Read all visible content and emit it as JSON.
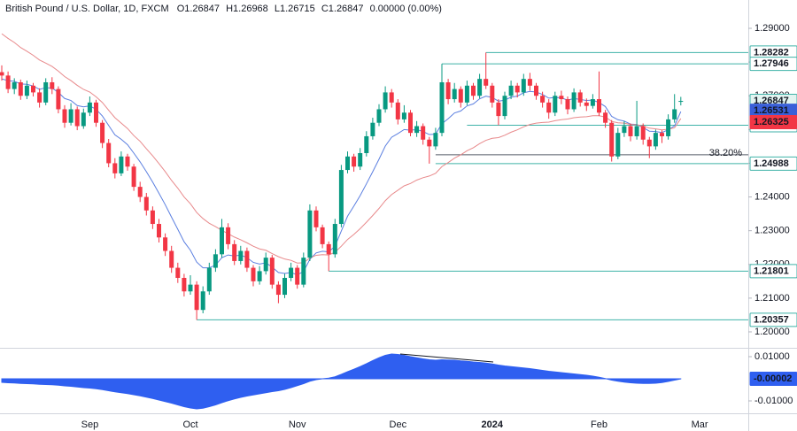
{
  "chart_data": {
    "type": "candlestick",
    "title": "British Pound / U.S. Dollar, 1D, FXCM",
    "header_keys": [
      "O",
      "H",
      "L",
      "C"
    ],
    "change": "0.00000 (0.00%)",
    "up_color": "#089981",
    "down_color": "#f23645",
    "categories": [
      null,
      null,
      null,
      null,
      null,
      null,
      null,
      null,
      null,
      null,
      null,
      null,
      null,
      null,
      "Sep",
      null,
      null,
      null,
      null,
      null,
      null,
      null,
      null,
      null,
      null,
      null,
      null,
      null,
      null,
      null,
      "Oct",
      null,
      null,
      null,
      null,
      null,
      null,
      null,
      null,
      null,
      null,
      null,
      null,
      null,
      null,
      null,
      null,
      "Nov",
      null,
      null,
      null,
      null,
      null,
      null,
      null,
      null,
      null,
      null,
      null,
      null,
      null,
      null,
      null,
      "Dec",
      null,
      null,
      null,
      null,
      null,
      null,
      null,
      null,
      null,
      null,
      null,
      null,
      null,
      null,
      "2024",
      null,
      null,
      null,
      null,
      null,
      null,
      null,
      null,
      null,
      null,
      null,
      null,
      null,
      null,
      null,
      null,
      "Feb",
      null,
      null,
      null,
      null,
      null,
      null,
      null,
      null,
      null,
      null,
      null,
      null,
      null,
      null,
      null,
      "Mar"
    ],
    "candles": [
      [
        1.277,
        1.279,
        1.2745,
        1.276
      ],
      [
        1.276,
        1.2772,
        1.2708,
        1.272
      ],
      [
        1.272,
        1.2752,
        1.2705,
        1.274
      ],
      [
        1.274,
        1.2748,
        1.2688,
        1.27
      ],
      [
        1.27,
        1.2745,
        1.269,
        1.273
      ],
      [
        1.273,
        1.2738,
        1.2698,
        1.271
      ],
      [
        1.271,
        1.2722,
        1.2665,
        1.268
      ],
      [
        1.268,
        1.2752,
        1.2672,
        1.274
      ],
      [
        1.274,
        1.2755,
        1.2705,
        1.272
      ],
      [
        1.272,
        1.2728,
        1.2648,
        1.266
      ],
      [
        1.266,
        1.2672,
        1.2605,
        1.262
      ],
      [
        1.262,
        1.2678,
        1.2612,
        1.266
      ],
      [
        1.266,
        1.2668,
        1.2598,
        1.261
      ],
      [
        1.261,
        1.2662,
        1.2602,
        1.265
      ],
      [
        1.265,
        1.2698,
        1.264,
        1.268
      ],
      [
        1.268,
        1.2688,
        1.2608,
        1.262
      ],
      [
        1.262,
        1.2628,
        1.2545,
        1.256
      ],
      [
        1.256,
        1.2572,
        1.2488,
        1.25
      ],
      [
        1.25,
        1.2515,
        1.2455,
        1.247
      ],
      [
        1.247,
        1.2535,
        1.2462,
        1.252
      ],
      [
        1.252,
        1.2528,
        1.2478,
        1.249
      ],
      [
        1.249,
        1.2498,
        1.2418,
        1.243
      ],
      [
        1.243,
        1.2445,
        1.2385,
        1.24
      ],
      [
        1.24,
        1.2412,
        1.2345,
        1.236
      ],
      [
        1.236,
        1.2372,
        1.2305,
        1.232
      ],
      [
        1.232,
        1.2335,
        1.2265,
        1.228
      ],
      [
        1.228,
        1.2292,
        1.2225,
        1.224
      ],
      [
        1.224,
        1.2255,
        1.2175,
        1.219
      ],
      [
        1.219,
        1.2205,
        1.2145,
        1.216
      ],
      [
        1.216,
        1.2172,
        1.2105,
        1.212
      ],
      [
        1.212,
        1.2168,
        1.211,
        1.214
      ],
      [
        1.214,
        1.215,
        1.20357,
        1.2065
      ],
      [
        1.2065,
        1.2135,
        1.2055,
        1.212
      ],
      [
        1.212,
        1.2205,
        1.211,
        1.219
      ],
      [
        1.219,
        1.2245,
        1.2178,
        1.223
      ],
      [
        1.223,
        1.2335,
        1.222,
        1.231
      ],
      [
        1.231,
        1.2322,
        1.2245,
        1.226
      ],
      [
        1.226,
        1.2272,
        1.2198,
        1.221
      ],
      [
        1.221,
        1.2255,
        1.22,
        1.224
      ],
      [
        1.224,
        1.225,
        1.2178,
        1.219
      ],
      [
        1.219,
        1.2198,
        1.2135,
        1.215
      ],
      [
        1.215,
        1.2195,
        1.214,
        1.218
      ],
      [
        1.218,
        1.2235,
        1.217,
        1.222
      ],
      [
        1.222,
        1.2228,
        1.2128,
        1.214
      ],
      [
        1.214,
        1.215,
        1.2085,
        1.211
      ],
      [
        1.211,
        1.2172,
        1.21,
        1.216
      ],
      [
        1.216,
        1.2205,
        1.215,
        1.219
      ],
      [
        1.219,
        1.2198,
        1.2128,
        1.214
      ],
      [
        1.214,
        1.2235,
        1.2132,
        1.222
      ],
      [
        1.222,
        1.2378,
        1.221,
        1.236
      ],
      [
        1.236,
        1.2372,
        1.2298,
        1.231
      ],
      [
        1.231,
        1.2318,
        1.2248,
        1.226
      ],
      [
        1.226,
        1.2268,
        1.21801,
        1.223
      ],
      [
        1.223,
        1.2335,
        1.222,
        1.232
      ],
      [
        1.232,
        1.2495,
        1.231,
        1.248
      ],
      [
        1.248,
        1.2535,
        1.247,
        1.252
      ],
      [
        1.252,
        1.2528,
        1.2475,
        1.249
      ],
      [
        1.249,
        1.2545,
        1.248,
        1.253
      ],
      [
        1.253,
        1.2595,
        1.252,
        1.258
      ],
      [
        1.258,
        1.2635,
        1.257,
        1.262
      ],
      [
        1.262,
        1.2675,
        1.261,
        1.266
      ],
      [
        1.266,
        1.2728,
        1.265,
        1.271
      ],
      [
        1.271,
        1.272,
        1.2665,
        1.268
      ],
      [
        1.268,
        1.269,
        1.2615,
        1.263
      ],
      [
        1.263,
        1.2672,
        1.262,
        1.265
      ],
      [
        1.265,
        1.2658,
        1.258,
        1.259
      ],
      [
        1.259,
        1.2625,
        1.2578,
        1.261
      ],
      [
        1.261,
        1.2618,
        1.2555,
        1.257
      ],
      [
        1.257,
        1.2578,
        1.24988,
        1.255
      ],
      [
        1.255,
        1.2605,
        1.254,
        1.259
      ],
      [
        1.259,
        1.27946,
        1.258,
        1.274
      ],
      [
        1.274,
        1.275,
        1.2675,
        1.269
      ],
      [
        1.269,
        1.2738,
        1.268,
        1.272
      ],
      [
        1.272,
        1.2728,
        1.2665,
        1.268
      ],
      [
        1.268,
        1.2745,
        1.2672,
        1.273
      ],
      [
        1.273,
        1.2738,
        1.2688,
        1.27
      ],
      [
        1.27,
        1.2765,
        1.2692,
        1.275
      ],
      [
        1.275,
        1.28282,
        1.272,
        1.273
      ],
      [
        1.273,
        1.2738,
        1.2665,
        1.268
      ],
      [
        1.268,
        1.269,
        1.26128,
        1.264
      ],
      [
        1.264,
        1.2712,
        1.263,
        1.27
      ],
      [
        1.27,
        1.2745,
        1.269,
        1.273
      ],
      [
        1.273,
        1.2738,
        1.2695,
        1.271
      ],
      [
        1.271,
        1.2765,
        1.27,
        1.275
      ],
      [
        1.275,
        1.2768,
        1.2715,
        1.273
      ],
      [
        1.273,
        1.2738,
        1.2688,
        1.27
      ],
      [
        1.27,
        1.2712,
        1.2665,
        1.268
      ],
      [
        1.268,
        1.269,
        1.2632,
        1.265
      ],
      [
        1.265,
        1.2712,
        1.264,
        1.27
      ],
      [
        1.27,
        1.2715,
        1.2675,
        1.269
      ],
      [
        1.269,
        1.2698,
        1.2645,
        1.266
      ],
      [
        1.266,
        1.2722,
        1.2652,
        1.271
      ],
      [
        1.271,
        1.2718,
        1.2668,
        1.268
      ],
      [
        1.268,
        1.2692,
        1.2655,
        1.267
      ],
      [
        1.267,
        1.2705,
        1.2662,
        1.269
      ],
      [
        1.269,
        1.2772,
        1.264,
        1.265
      ],
      [
        1.265,
        1.2658,
        1.2605,
        1.262
      ],
      [
        1.262,
        1.2628,
        1.2505,
        1.252
      ],
      [
        1.252,
        1.2605,
        1.2512,
        1.259
      ],
      [
        1.259,
        1.2625,
        1.2578,
        1.261
      ],
      [
        1.261,
        1.2618,
        1.2565,
        1.258
      ],
      [
        1.258,
        1.2685,
        1.257,
        1.261
      ],
      [
        1.261,
        1.2618,
        1.2555,
        1.257
      ],
      [
        1.257,
        1.2578,
        1.2515,
        1.255
      ],
      [
        1.255,
        1.26,
        1.254,
        1.259
      ],
      [
        1.259,
        1.2598,
        1.256,
        1.258
      ],
      [
        1.258,
        1.2645,
        1.257,
        1.263
      ],
      [
        1.263,
        1.2705,
        1.262,
        1.266
      ],
      [
        1.26847,
        1.26968,
        1.26715,
        1.26847
      ],
      null,
      null,
      null
    ],
    "moving_averages": [
      {
        "color": "#5b7fe0",
        "label_color": "#3a5fd8",
        "values": [
          1.275,
          1.2745,
          1.2743,
          1.2735,
          1.2734,
          1.2729,
          1.2719,
          1.2724,
          1.2723,
          1.271,
          1.2692,
          1.2686,
          1.2671,
          1.2667,
          1.267,
          1.266,
          1.264,
          1.2612,
          1.2584,
          1.2571,
          1.2555,
          1.253,
          1.2504,
          1.2475,
          1.2444,
          1.2411,
          1.2377,
          1.234,
          1.2304,
          1.2267,
          1.2242,
          1.2207,
          1.219,
          1.219,
          1.2198,
          1.222,
          1.2228,
          1.2225,
          1.2228,
          1.222,
          1.2206,
          1.2201,
          1.2205,
          1.2192,
          1.2176,
          1.2173,
          1.2176,
          1.2169,
          1.2179,
          1.2215,
          1.2234,
          1.2239,
          1.2237,
          1.2254,
          1.2299,
          1.2343,
          1.2373,
          1.2404,
          1.2439,
          1.2475,
          1.2512,
          1.2551,
          1.2577,
          1.2588,
          1.26,
          1.2598,
          1.26,
          1.2594,
          1.2585,
          1.2586,
          1.2617,
          1.2632,
          1.2649,
          1.2655,
          1.267,
          1.2676,
          1.2691,
          1.2699,
          1.2695,
          1.2684,
          1.2687,
          1.2696,
          1.2699,
          1.2709,
          1.2713,
          1.2711,
          1.2704,
          1.2693,
          1.2695,
          1.2694,
          1.2687,
          1.2692,
          1.2689,
          1.2686,
          1.2687,
          1.268,
          1.2668,
          1.2639,
          1.2629,
          1.2625,
          1.2616,
          1.2615,
          1.2606,
          1.2595,
          1.2594,
          1.2591,
          1.2599,
          1.2611,
          1.26531,
          null,
          null,
          null
        ]
      },
      {
        "color": "#e8898b",
        "label_color": "#f23645",
        "values": [
          1.2884,
          1.287,
          1.2858,
          1.2843,
          1.2832,
          1.282,
          1.2806,
          1.2797,
          1.2787,
          1.2773,
          1.2757,
          1.2745,
          1.2731,
          1.2719,
          1.2711,
          1.2697,
          1.268,
          1.2657,
          1.2635,
          1.2619,
          1.2603,
          1.2582,
          1.2565,
          1.2543,
          1.2522,
          1.2499,
          1.2475,
          1.2449,
          1.2426,
          1.24,
          1.238,
          1.2354,
          1.2336,
          1.2322,
          1.2312,
          1.2301,
          1.2291,
          1.2281,
          1.2273,
          1.2264,
          1.2254,
          1.2246,
          1.2242,
          1.2232,
          1.2223,
          1.2216,
          1.2212,
          1.2204,
          1.2205,
          1.2219,
          1.2227,
          1.2229,
          1.2228,
          1.2236,
          1.2254,
          1.2274,
          1.2289,
          1.2306,
          1.2325,
          1.2345,
          1.2366,
          1.2389,
          1.2407,
          1.242,
          1.2433,
          1.244,
          1.245,
          1.2457,
          1.2462,
          1.247,
          1.249,
          1.2502,
          1.2515,
          1.2525,
          1.2537,
          1.2546,
          1.2558,
          1.2568,
          1.2574,
          1.2576,
          1.2583,
          1.2592,
          1.2599,
          1.2608,
          1.2615,
          1.2619,
          1.2621,
          1.2622,
          1.2626,
          1.2629,
          1.2631,
          1.2635,
          1.2637,
          1.2638,
          1.2641,
          1.2641,
          1.2637,
          1.2624,
          1.262,
          1.2619,
          1.2615,
          1.2614,
          1.261,
          1.2604,
          1.2602,
          1.2599,
          1.2601,
          1.2605,
          1.26325,
          null,
          null,
          null
        ]
      }
    ],
    "levels": [
      {
        "value": 1.28282,
        "start": 77
      },
      {
        "value": 1.27946,
        "start": 70
      },
      {
        "value": 1.26128,
        "start": 74
      },
      {
        "value": 1.24988,
        "start": 69
      },
      {
        "value": 1.21801,
        "start": 52
      },
      {
        "value": 1.20357,
        "start": 31
      }
    ],
    "level_color": "#3fb2a8",
    "fib": {
      "value": 1.2525,
      "label": "38.20%",
      "start": 69,
      "color": "#555a66",
      "label_color": "#7e57c2"
    },
    "ylim": [
      1.19527,
      1.2984
    ],
    "yticks": [
      {
        "value": 1.29,
        "label": "1.29000"
      },
      {
        "value": 1.28,
        "label": "1.28000"
      },
      {
        "value": 1.27,
        "label": "1.27000"
      },
      {
        "value": 1.26,
        "label": "1.26000"
      },
      {
        "value": 1.25,
        "label": "1.25000"
      },
      {
        "value": 1.24,
        "label": "1.24000"
      },
      {
        "value": 1.23,
        "label": "1.23000"
      },
      {
        "value": 1.22,
        "label": "1.22000"
      },
      {
        "value": 1.21,
        "label": "1.21000"
      },
      {
        "value": 1.2,
        "label": "1.20000"
      }
    ],
    "oscillator": {
      "color": "#2f5ff0",
      "axis": "y2",
      "values": [
        -0.0016,
        -0.0018,
        -0.0019,
        -0.0021,
        -0.0022,
        -0.0023,
        -0.0025,
        -0.0026,
        -0.0027,
        -0.0029,
        -0.0032,
        -0.0034,
        -0.0037,
        -0.004,
        -0.0042,
        -0.0045,
        -0.0049,
        -0.0054,
        -0.0059,
        -0.0063,
        -0.0067,
        -0.0072,
        -0.0077,
        -0.0083,
        -0.0089,
        -0.0096,
        -0.0103,
        -0.011,
        -0.0118,
        -0.0126,
        -0.0132,
        -0.0136,
        -0.0133,
        -0.0126,
        -0.0118,
        -0.0108,
        -0.0099,
        -0.0091,
        -0.0084,
        -0.0078,
        -0.0073,
        -0.0068,
        -0.0063,
        -0.0058,
        -0.0054,
        -0.0048,
        -0.004,
        -0.0031,
        -0.0022,
        -0.0011,
        -0.0004,
        0.0,
        0.0003,
        0.0009,
        0.002,
        0.0032,
        0.0043,
        0.0055,
        0.0068,
        0.0082,
        0.0095,
        0.0106,
        0.0112,
        0.011,
        0.0106,
        0.01,
        0.0095,
        0.009,
        0.0086,
        0.0084,
        0.0086,
        0.0085,
        0.0084,
        0.0081,
        0.0079,
        0.0076,
        0.0074,
        0.0071,
        0.0067,
        0.0062,
        0.0058,
        0.0055,
        0.0052,
        0.0049,
        0.0046,
        0.0042,
        0.0038,
        0.0034,
        0.0031,
        0.0028,
        0.0025,
        0.0022,
        0.0019,
        0.0016,
        0.0012,
        0.0007,
        0.0001,
        -0.0006,
        -0.0011,
        -0.0015,
        -0.0018,
        -0.002,
        -0.0021,
        -0.0021,
        -0.002,
        -0.0017,
        -0.0012,
        -0.0006,
        -2e-05,
        null,
        null,
        null
      ]
    },
    "y2lim": [
      -0.0156,
      0.014
    ],
    "y2ticks": [
      {
        "value": 0.01,
        "label": "0.01000"
      },
      {
        "value": -0.01,
        "label": "-0.01000"
      }
    ]
  }
}
